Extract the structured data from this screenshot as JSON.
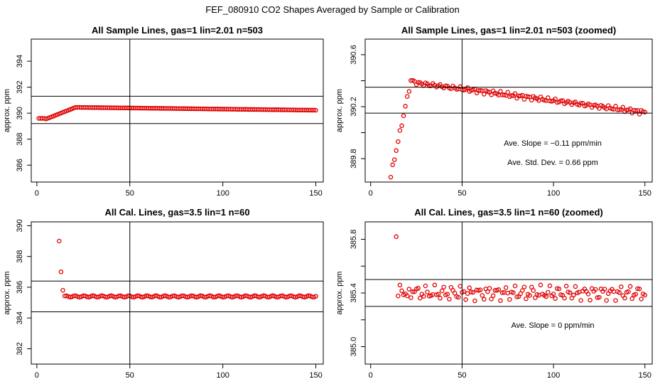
{
  "figure": {
    "title": "FEF_080910  CO2 Shapes Averaged by Sample or Calibration"
  },
  "chart_data": [
    {
      "type": "scatter",
      "title": "All Sample Lines, gas=1 lin=2.01 n=503",
      "xlabel": "",
      "ylabel": "approx. ppm",
      "xlim": [
        -3,
        154
      ],
      "ylim": [
        384.7,
        395.7
      ],
      "xticks": [
        0,
        50,
        100,
        150
      ],
      "yticks": [
        386,
        388,
        390,
        392,
        394
      ],
      "hlines": [
        391.3,
        389.2
      ],
      "vline": 50,
      "marker_color": "#e00000",
      "series_profile": "sample",
      "annotations": []
    },
    {
      "type": "scatter",
      "title": "All Sample Lines, gas=1 lin=2.01 n=503 (zoomed)",
      "xlabel": "",
      "ylabel": "approx. ppm",
      "xlim": [
        -3,
        154
      ],
      "ylim": [
        389.62,
        390.72
      ],
      "xticks": [
        0,
        50,
        100,
        150
      ],
      "yticks": [
        389.8,
        390.0,
        390.2,
        390.4,
        390.6
      ],
      "ytick_labels": [
        "389.8",
        "",
        "390.2",
        "",
        "390.6"
      ],
      "hlines": [
        390.35,
        390.15
      ],
      "vline": 50,
      "marker_color": "#e00000",
      "series_profile": "sample",
      "annotations": [
        "Ave. Slope = −0.11  ppm/min",
        "Ave. Std. Dev. = 0.66  ppm"
      ]
    },
    {
      "type": "scatter",
      "title": "All Cal. Lines, gas=3.5 lin=1 n=60",
      "xlabel": "",
      "ylabel": "approx. ppm",
      "xlim": [
        -3,
        154
      ],
      "ylim": [
        381.0,
        390.25
      ],
      "xticks": [
        0,
        50,
        100,
        150
      ],
      "yticks": [
        382,
        384,
        386,
        388,
        390
      ],
      "hlines": [
        386.4,
        384.4
      ],
      "vline": 50,
      "marker_color": "#e00000",
      "series_profile": "cal",
      "annotations": []
    },
    {
      "type": "scatter",
      "title": "All Cal. Lines, gas=3.5 lin=1 n=60 (zoomed)",
      "xlabel": "",
      "ylabel": "approx. ppm",
      "xlim": [
        -3,
        154
      ],
      "ylim": [
        384.87,
        385.93
      ],
      "xticks": [
        0,
        50,
        100,
        150
      ],
      "yticks": [
        385.0,
        385.2,
        385.4,
        385.6,
        385.8
      ],
      "ytick_labels": [
        "385.0",
        "",
        "385.4",
        "",
        "385.8"
      ],
      "hlines": [
        385.5,
        385.3
      ],
      "vline": 50,
      "marker_color": "#e00000",
      "series_profile": "cal",
      "annotations": [
        "Ave. Slope =  0  ppm/min"
      ]
    }
  ]
}
